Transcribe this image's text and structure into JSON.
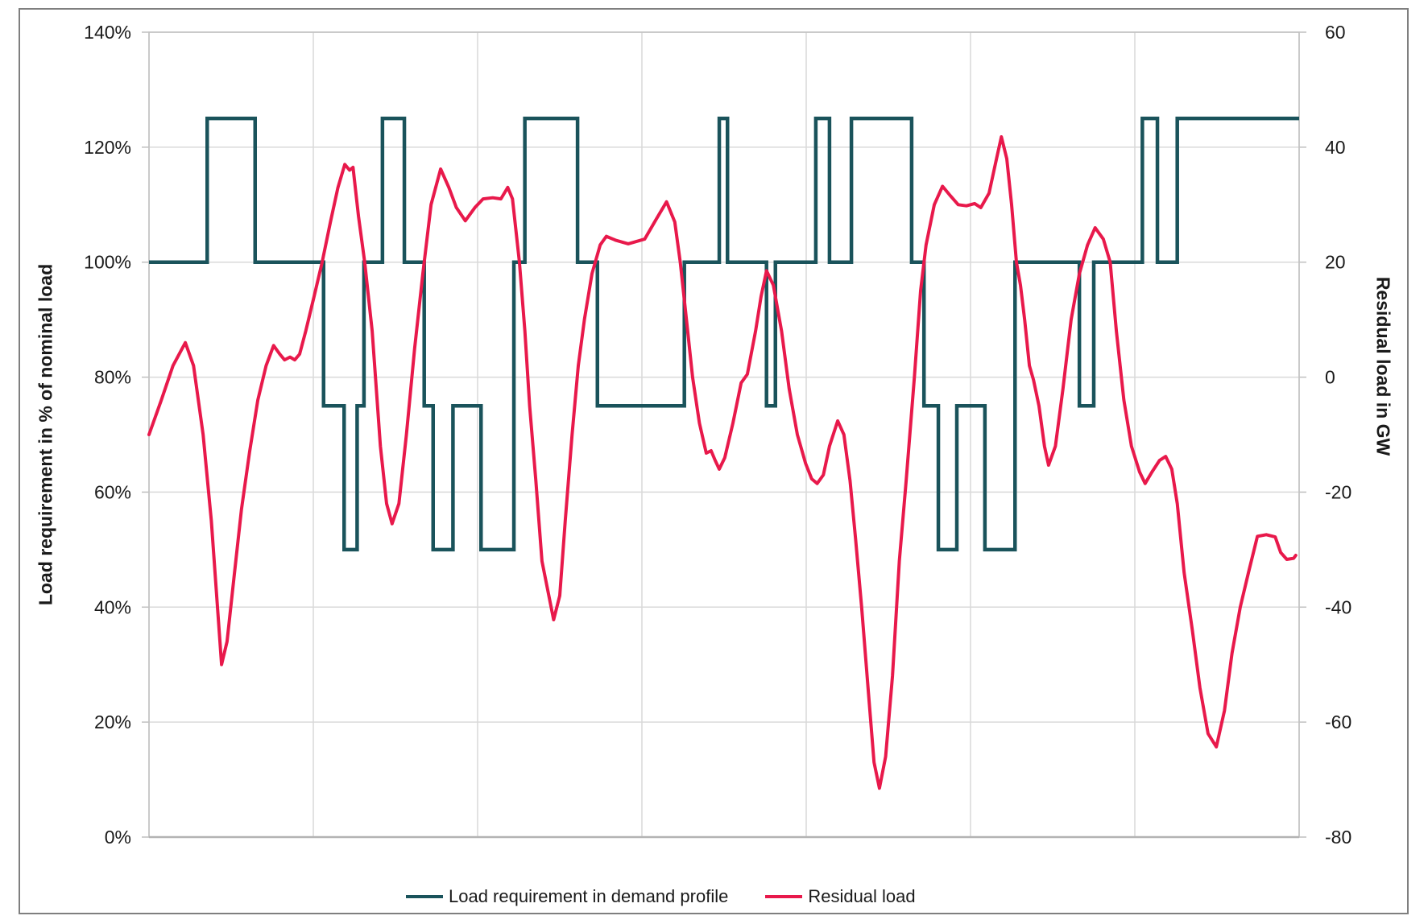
{
  "figure": {
    "background_color": "#ffffff",
    "border_color": "#7f7f7f"
  },
  "chart_data": {
    "type": "line",
    "title": "",
    "grid": true,
    "legend_position": "bottom",
    "x_axis": {
      "label": "",
      "range_hours": [
        0,
        168
      ],
      "gridline_every_hours": 24,
      "tick_labels_visible": false
    },
    "y_axis_left": {
      "label": "Load requirement in % of nominal load",
      "range": [
        0,
        140
      ],
      "tick_step": 20,
      "ticks": [
        "140%",
        "120%",
        "100%",
        "80%",
        "60%",
        "40%",
        "20%",
        "0%"
      ]
    },
    "y_axis_right": {
      "label": "Residual load in GW",
      "range": [
        -80,
        60
      ],
      "tick_step": 20,
      "ticks": [
        "60",
        "40",
        "20",
        "0",
        "-20",
        "-40",
        "-60",
        "-80"
      ]
    },
    "colors": {
      "demand_profile": "#1a535b",
      "residual_load": "#e8194b",
      "gridline": "#d9d9d9",
      "plot_border": "#bfbfbf",
      "text": "#1a1a1a"
    },
    "series": [
      {
        "name": "Load requirement in demand profile",
        "axis": "left",
        "unit": "% of nominal load",
        "style": "step",
        "segments_hours_level_percent": [
          [
            0,
            8.5,
            100
          ],
          [
            8.5,
            15.5,
            125
          ],
          [
            15.5,
            25.5,
            100
          ],
          [
            25.5,
            28.5,
            75
          ],
          [
            28.5,
            30.4,
            50
          ],
          [
            30.4,
            31.4,
            75
          ],
          [
            31.4,
            34.1,
            100
          ],
          [
            34.1,
            37.3,
            125
          ],
          [
            37.3,
            40.2,
            100
          ],
          [
            40.2,
            41.5,
            75
          ],
          [
            41.5,
            44.4,
            50
          ],
          [
            44.4,
            48.5,
            75
          ],
          [
            48.5,
            53.3,
            50
          ],
          [
            53.3,
            54.9,
            100
          ],
          [
            54.9,
            62.6,
            125
          ],
          [
            62.6,
            65.5,
            100
          ],
          [
            65.5,
            78.2,
            75
          ],
          [
            78.2,
            83.3,
            100
          ],
          [
            83.3,
            84.5,
            125
          ],
          [
            84.5,
            90.2,
            100
          ],
          [
            90.2,
            91.5,
            75
          ],
          [
            91.5,
            97.4,
            100
          ],
          [
            97.4,
            99.4,
            125
          ],
          [
            99.4,
            102.6,
            100
          ],
          [
            102.6,
            111.4,
            125
          ],
          [
            111.4,
            113.2,
            100
          ],
          [
            113.2,
            115.3,
            75
          ],
          [
            115.3,
            118.0,
            50
          ],
          [
            118.0,
            122.1,
            75
          ],
          [
            122.1,
            126.5,
            50
          ],
          [
            126.5,
            135.9,
            100
          ],
          [
            135.9,
            138.0,
            75
          ],
          [
            138.0,
            145.1,
            100
          ],
          [
            145.1,
            147.3,
            125
          ],
          [
            147.3,
            150.2,
            100
          ],
          [
            150.2,
            168,
            125
          ]
        ]
      },
      {
        "name": "Residual load",
        "axis": "right",
        "unit": "GW",
        "style": "line",
        "points_hours_gw": [
          [
            0,
            -10
          ],
          [
            1.8,
            -4
          ],
          [
            3.5,
            2
          ],
          [
            5.3,
            6
          ],
          [
            6.5,
            2
          ],
          [
            7.9,
            -10
          ],
          [
            9.1,
            -25
          ],
          [
            10.6,
            -50
          ],
          [
            11.4,
            -46
          ],
          [
            12.4,
            -35
          ],
          [
            13.5,
            -23
          ],
          [
            14.7,
            -13
          ],
          [
            15.9,
            -4
          ],
          [
            17.1,
            2
          ],
          [
            18.2,
            5.5
          ],
          [
            19.1,
            4
          ],
          [
            19.8,
            3
          ],
          [
            20.6,
            3.5
          ],
          [
            21.3,
            3
          ],
          [
            22,
            4
          ],
          [
            22.9,
            8
          ],
          [
            24.1,
            14
          ],
          [
            25.3,
            20
          ],
          [
            26.5,
            27
          ],
          [
            27.6,
            33
          ],
          [
            28.6,
            37
          ],
          [
            29.3,
            36
          ],
          [
            29.8,
            36.5
          ],
          [
            30.6,
            28
          ],
          [
            31.5,
            20
          ],
          [
            32.6,
            8
          ],
          [
            33.8,
            -12
          ],
          [
            34.7,
            -22
          ],
          [
            35.5,
            -25.5
          ],
          [
            36.5,
            -22
          ],
          [
            37.6,
            -10
          ],
          [
            38.8,
            5
          ],
          [
            40,
            18
          ],
          [
            41.2,
            30
          ],
          [
            42.6,
            36.2
          ],
          [
            43.8,
            33
          ],
          [
            44.9,
            29.5
          ],
          [
            46.2,
            27.2
          ],
          [
            47.6,
            29.5
          ],
          [
            48.8,
            31
          ],
          [
            50.2,
            31.2
          ],
          [
            51.4,
            31
          ],
          [
            52.4,
            33
          ],
          [
            53.1,
            31
          ],
          [
            54.1,
            20
          ],
          [
            54.9,
            8
          ],
          [
            55.6,
            -5
          ],
          [
            56.5,
            -18
          ],
          [
            57.4,
            -32
          ],
          [
            59.1,
            -42.2
          ],
          [
            60,
            -38
          ],
          [
            60.8,
            -25
          ],
          [
            61.8,
            -10
          ],
          [
            62.7,
            2
          ],
          [
            63.6,
            10
          ],
          [
            64.7,
            18
          ],
          [
            65.9,
            23
          ],
          [
            66.8,
            24.5
          ],
          [
            68.2,
            23.8
          ],
          [
            70,
            23.2
          ],
          [
            72.4,
            24
          ],
          [
            74.1,
            27.5
          ],
          [
            75.6,
            30.5
          ],
          [
            76.8,
            27
          ],
          [
            77.6,
            20
          ],
          [
            78.5,
            10
          ],
          [
            79.4,
            0
          ],
          [
            80.4,
            -8
          ],
          [
            81.4,
            -13.2
          ],
          [
            82.1,
            -12.8
          ],
          [
            82.7,
            -14.5
          ],
          [
            83.3,
            -16
          ],
          [
            84.1,
            -14
          ],
          [
            85.3,
            -8
          ],
          [
            86.5,
            -1
          ],
          [
            87.4,
            0.5
          ],
          [
            88.6,
            8
          ],
          [
            89.4,
            14
          ],
          [
            90.2,
            18.5
          ],
          [
            91.2,
            16
          ],
          [
            92.4,
            8
          ],
          [
            93.5,
            -2
          ],
          [
            94.7,
            -10
          ],
          [
            95.9,
            -15
          ],
          [
            96.8,
            -17.7
          ],
          [
            97.6,
            -18.5
          ],
          [
            98.5,
            -17
          ],
          [
            99.4,
            -12
          ],
          [
            100.6,
            -7.6
          ],
          [
            101.5,
            -10
          ],
          [
            102.4,
            -18
          ],
          [
            103.2,
            -28
          ],
          [
            104.1,
            -40
          ],
          [
            105.1,
            -55
          ],
          [
            105.9,
            -67
          ],
          [
            106.7,
            -71.5
          ],
          [
            107.6,
            -66
          ],
          [
            108.6,
            -52
          ],
          [
            109.6,
            -32
          ],
          [
            110.6,
            -18
          ],
          [
            111.8,
            0
          ],
          [
            112.7,
            15
          ],
          [
            113.5,
            23
          ],
          [
            114.7,
            30
          ],
          [
            115.9,
            33.2
          ],
          [
            117.1,
            31.5
          ],
          [
            118.2,
            30
          ],
          [
            119.4,
            29.8
          ],
          [
            120.6,
            30.2
          ],
          [
            121.5,
            29.5
          ],
          [
            122.7,
            32
          ],
          [
            123.8,
            38
          ],
          [
            124.5,
            41.8
          ],
          [
            125.3,
            38
          ],
          [
            126,
            30
          ],
          [
            126.7,
            20
          ],
          [
            127.3,
            16
          ],
          [
            127.9,
            10
          ],
          [
            128.6,
            2
          ],
          [
            129.2,
            -0.5
          ],
          [
            130,
            -5
          ],
          [
            130.8,
            -12
          ],
          [
            131.4,
            -15.3
          ],
          [
            132.4,
            -12
          ],
          [
            133.5,
            -2
          ],
          [
            134.7,
            10
          ],
          [
            135.9,
            18
          ],
          [
            137.1,
            23
          ],
          [
            138.2,
            26
          ],
          [
            139.4,
            24
          ],
          [
            140.4,
            20
          ],
          [
            141.3,
            8
          ],
          [
            142.4,
            -4
          ],
          [
            143.5,
            -12
          ],
          [
            144.7,
            -16.5
          ],
          [
            145.5,
            -18.5
          ],
          [
            146.5,
            -16.5
          ],
          [
            147.6,
            -14.5
          ],
          [
            148.5,
            -13.8
          ],
          [
            149.4,
            -16
          ],
          [
            150.2,
            -22
          ],
          [
            151.2,
            -34
          ],
          [
            152.4,
            -44
          ],
          [
            153.5,
            -54
          ],
          [
            154.7,
            -62
          ],
          [
            155.9,
            -64.3
          ],
          [
            157.1,
            -58
          ],
          [
            158.2,
            -48
          ],
          [
            159.4,
            -40
          ],
          [
            160.6,
            -34
          ],
          [
            161.9,
            -27.7
          ],
          [
            163.2,
            -27.4
          ],
          [
            164.5,
            -27.8
          ],
          [
            165.3,
            -30.5
          ],
          [
            166.2,
            -31.7
          ],
          [
            167.2,
            -31.5
          ],
          [
            167.5,
            -31
          ]
        ]
      }
    ]
  }
}
